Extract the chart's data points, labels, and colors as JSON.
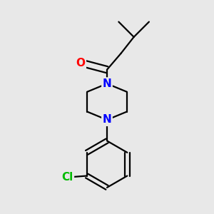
{
  "background_color": "#e8e8e8",
  "bond_color": "#000000",
  "N_color": "#0000ff",
  "O_color": "#ff0000",
  "Cl_color": "#00bb00",
  "line_width": 1.6,
  "figsize": [
    3.0,
    3.0
  ],
  "dpi": 100,
  "xlim": [
    0.2,
    0.8
  ],
  "ylim": [
    0.05,
    0.95
  ]
}
